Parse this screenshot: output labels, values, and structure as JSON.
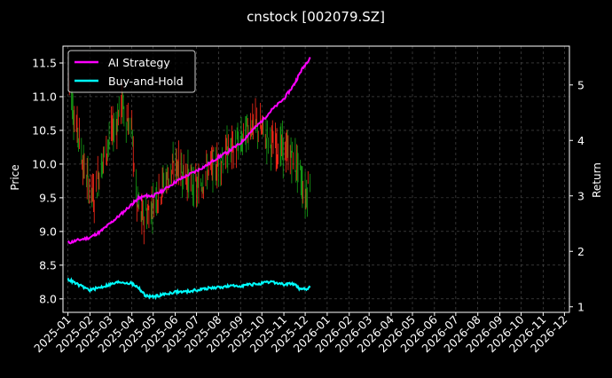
{
  "chart_data": {
    "type": "line",
    "title": "cnstock [002079.SZ]",
    "ylabel_left": "Price",
    "ylabel_right": "Return",
    "xlabel": "",
    "grid": true,
    "legend_position": "top-left",
    "colors": {
      "background": "#000000",
      "axes": "#ffffff",
      "grid": "#555555",
      "ai_strategy": "#ff00ff",
      "buy_and_hold": "#00ffff",
      "candle_up": "#ff2a1a",
      "candle_down": "#16a016"
    },
    "x_ticks": [
      "2025-01",
      "2025-02",
      "2025-03",
      "2025-04",
      "2025-05",
      "2025-06",
      "2025-07",
      "2025-08",
      "2025-09",
      "2025-10",
      "2025-11",
      "2025-12",
      "2026-01",
      "2026-02",
      "2026-03",
      "2026-04",
      "2026-05",
      "2026-06",
      "2026-07",
      "2026-08",
      "2026-09",
      "2026-10",
      "2026-11",
      "2026-12"
    ],
    "x_range": [
      "2024-12-25",
      "2026-12-08"
    ],
    "y_left_range": [
      7.8,
      11.75
    ],
    "y_left_ticks": [
      "8.0",
      "8.5",
      "9.0",
      "9.5",
      "10.0",
      "10.5",
      "11.0",
      "11.5"
    ],
    "y_right_range": [
      0.9,
      5.7
    ],
    "y_right_ticks": [
      "1",
      "2",
      "3",
      "4",
      "5"
    ],
    "price_series": {
      "name": "Price",
      "points": [
        [
          "2025-01-02",
          11.3
        ],
        [
          "2025-01-10",
          10.7
        ],
        [
          "2025-01-17",
          10.4
        ],
        [
          "2025-01-24",
          9.9
        ],
        [
          "2025-02-07",
          9.5
        ],
        [
          "2025-02-14",
          9.9
        ],
        [
          "2025-02-21",
          10.1
        ],
        [
          "2025-03-01",
          10.4
        ],
        [
          "2025-03-10",
          10.6
        ],
        [
          "2025-03-17",
          10.9
        ],
        [
          "2025-03-24",
          10.7
        ],
        [
          "2025-04-01",
          10.5
        ],
        [
          "2025-04-08",
          9.4
        ],
        [
          "2025-04-15",
          9.2
        ],
        [
          "2025-04-25",
          9.3
        ],
        [
          "2025-05-08",
          9.6
        ],
        [
          "2025-05-20",
          9.8
        ],
        [
          "2025-06-05",
          10.0
        ],
        [
          "2025-06-20",
          9.8
        ],
        [
          "2025-07-01",
          9.6
        ],
        [
          "2025-07-15",
          9.9
        ],
        [
          "2025-08-01",
          10.0
        ],
        [
          "2025-08-15",
          10.2
        ],
        [
          "2025-09-01",
          10.3
        ],
        [
          "2025-09-15",
          10.6
        ],
        [
          "2025-10-01",
          10.5
        ],
        [
          "2025-10-15",
          10.3
        ],
        [
          "2025-11-01",
          10.2
        ],
        [
          "2025-11-15",
          10.1
        ],
        [
          "2025-11-25",
          9.8
        ],
        [
          "2025-12-01",
          9.5
        ],
        [
          "2025-12-08",
          9.8
        ]
      ]
    },
    "series": [
      {
        "name": "AI Strategy",
        "axis": "right",
        "points": [
          [
            "2025-01-01",
            2.15
          ],
          [
            "2025-01-15",
            2.2
          ],
          [
            "2025-02-01",
            2.25
          ],
          [
            "2025-02-15",
            2.35
          ],
          [
            "2025-03-01",
            2.5
          ],
          [
            "2025-03-15",
            2.65
          ],
          [
            "2025-04-01",
            2.85
          ],
          [
            "2025-04-10",
            2.95
          ],
          [
            "2025-04-20",
            3.0
          ],
          [
            "2025-05-01",
            3.0
          ],
          [
            "2025-05-15",
            3.1
          ],
          [
            "2025-06-01",
            3.25
          ],
          [
            "2025-06-15",
            3.35
          ],
          [
            "2025-07-01",
            3.45
          ],
          [
            "2025-07-15",
            3.55
          ],
          [
            "2025-08-01",
            3.7
          ],
          [
            "2025-08-15",
            3.8
          ],
          [
            "2025-09-01",
            3.95
          ],
          [
            "2025-09-15",
            4.15
          ],
          [
            "2025-10-01",
            4.35
          ],
          [
            "2025-10-15",
            4.55
          ],
          [
            "2025-11-01",
            4.75
          ],
          [
            "2025-11-15",
            5.0
          ],
          [
            "2025-11-25",
            5.25
          ],
          [
            "2025-12-08",
            5.5
          ]
        ]
      },
      {
        "name": "Buy-and-Hold",
        "axis": "right",
        "points": [
          [
            "2025-01-01",
            1.5
          ],
          [
            "2025-01-15",
            1.4
          ],
          [
            "2025-02-01",
            1.3
          ],
          [
            "2025-02-15",
            1.35
          ],
          [
            "2025-03-01",
            1.4
          ],
          [
            "2025-03-15",
            1.45
          ],
          [
            "2025-04-01",
            1.42
          ],
          [
            "2025-04-10",
            1.35
          ],
          [
            "2025-04-20",
            1.2
          ],
          [
            "2025-05-01",
            1.18
          ],
          [
            "2025-05-15",
            1.22
          ],
          [
            "2025-06-01",
            1.27
          ],
          [
            "2025-06-15",
            1.27
          ],
          [
            "2025-07-01",
            1.3
          ],
          [
            "2025-07-15",
            1.33
          ],
          [
            "2025-08-01",
            1.35
          ],
          [
            "2025-08-15",
            1.37
          ],
          [
            "2025-09-01",
            1.38
          ],
          [
            "2025-09-15",
            1.4
          ],
          [
            "2025-10-01",
            1.42
          ],
          [
            "2025-10-15",
            1.45
          ],
          [
            "2025-11-01",
            1.4
          ],
          [
            "2025-11-15",
            1.42
          ],
          [
            "2025-11-25",
            1.3
          ],
          [
            "2025-12-08",
            1.35
          ]
        ]
      }
    ]
  }
}
